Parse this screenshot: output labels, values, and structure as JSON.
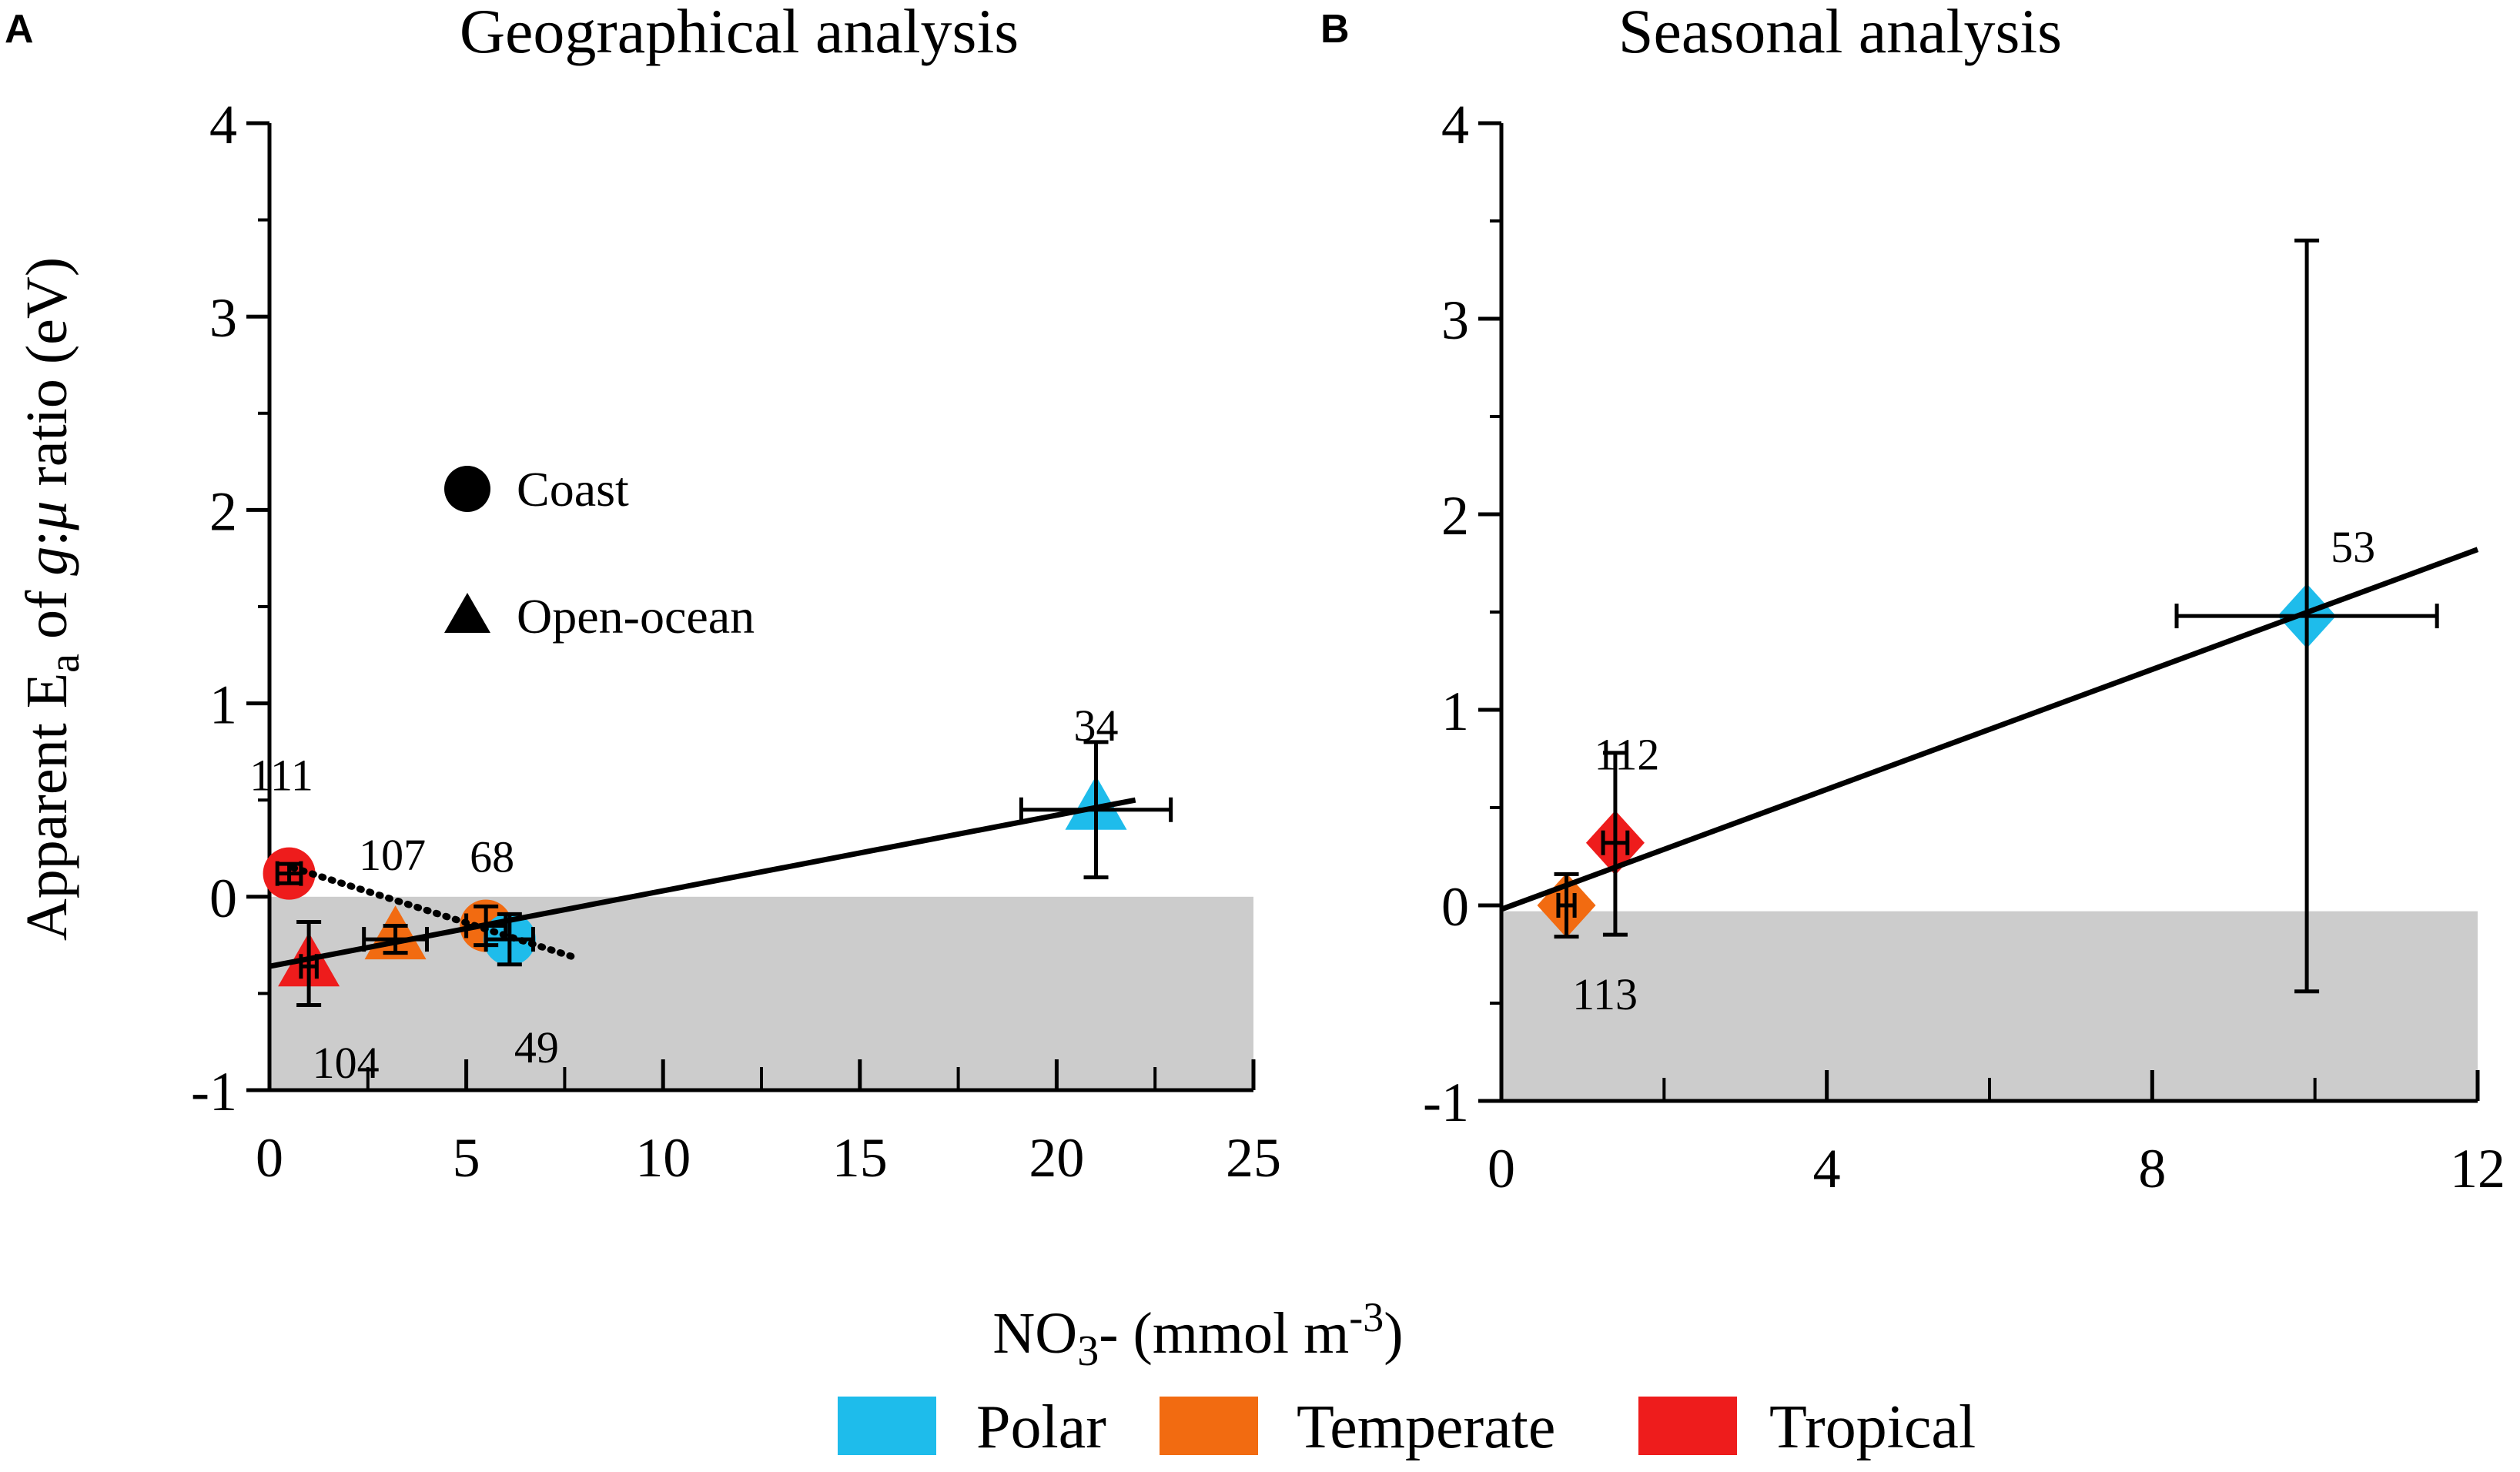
{
  "ylabel_parts": {
    "prefix": "Apparent E",
    "sub": "a",
    "of": " of ",
    "g": "g",
    "colon": ":",
    "mu": "μ",
    "suffix": " ratio (eV)"
  },
  "xlabel_parts": {
    "prefix": "NO",
    "sub": "3",
    "middle": "- (mmol m",
    "sup": "-3",
    "suffix": ")"
  },
  "colors": {
    "polar": "#1EBCEB",
    "temperate": "#F26B11",
    "tropical": "#EE1C1C",
    "shade": "#CCCCCC",
    "line": "#000000"
  },
  "region_legend": [
    {
      "label": "Polar",
      "color": "#1EBCEB"
    },
    {
      "label": "Temperate",
      "color": "#F26B11"
    },
    {
      "label": "Tropical",
      "color": "#EE1C1C"
    }
  ],
  "chart_data": [
    {
      "panel": "A",
      "type": "scatter",
      "title": "Geographical analysis",
      "xlabel": "NO3- (mmol m-3)",
      "ylabel": "Apparent Ea of g:μ ratio (eV)",
      "xlim": [
        0,
        25
      ],
      "ylim": [
        -1,
        4
      ],
      "xticks": [
        0,
        5,
        10,
        15,
        20,
        25
      ],
      "yticks": [
        -1,
        0,
        1,
        2,
        3,
        4
      ],
      "shaded_region": {
        "y_from": -1,
        "y_to": 0
      },
      "shape_legend": [
        {
          "shape": "circle",
          "label": "Coast"
        },
        {
          "shape": "triangle",
          "label": "Open-ocean"
        }
      ],
      "points": [
        {
          "label": "111",
          "x": 0.5,
          "y": 0.12,
          "shape": "circle",
          "region": "tropical",
          "xerr": [
            0.3,
            0.3
          ],
          "yerr": [
            0.05,
            0.05
          ]
        },
        {
          "label": "104",
          "x": 1.0,
          "y": -0.36,
          "shape": "triangle",
          "region": "tropical",
          "xerr": [
            0.2,
            0.2
          ],
          "yerr": [
            0.2,
            0.23
          ]
        },
        {
          "label": "107",
          "x": 3.2,
          "y": -0.22,
          "shape": "triangle",
          "region": "temperate",
          "xerr": [
            0.8,
            0.8
          ],
          "yerr": [
            0.07,
            0.07
          ]
        },
        {
          "label": "68",
          "x": 5.5,
          "y": -0.15,
          "shape": "circle",
          "region": "temperate",
          "xerr": [
            0.5,
            0.5
          ],
          "yerr": [
            0.1,
            0.1
          ]
        },
        {
          "label": "49",
          "x": 6.1,
          "y": -0.22,
          "shape": "circle",
          "region": "polar",
          "xerr": [
            0.6,
            0.6
          ],
          "yerr": [
            0.13,
            0.13
          ]
        },
        {
          "label": "34",
          "x": 21.0,
          "y": 0.45,
          "shape": "triangle",
          "region": "polar",
          "xerr": [
            1.9,
            1.9
          ],
          "yerr": [
            0.35,
            0.35
          ]
        }
      ],
      "fit_lines": [
        {
          "style": "solid",
          "x": [
            0,
            22.0
          ],
          "y": [
            -0.36,
            0.5
          ]
        },
        {
          "style": "dotted",
          "x": [
            0.6,
            7.7
          ],
          "y": [
            0.15,
            -0.31
          ]
        }
      ]
    },
    {
      "panel": "B",
      "type": "scatter",
      "title": "Seasonal analysis",
      "xlabel": "NO3- (mmol m-3)",
      "ylabel": "Apparent Ea of g:μ ratio (eV)",
      "xlim": [
        0,
        12
      ],
      "ylim": [
        -1,
        4
      ],
      "xticks": [
        0,
        4,
        8,
        12
      ],
      "yticks": [
        -1,
        0,
        1,
        2,
        3,
        4
      ],
      "shaded_region": {
        "y_from": -1,
        "y_to": -0.03
      },
      "points": [
        {
          "label": "113",
          "x": 0.8,
          "y": 0.0,
          "shape": "diamond",
          "region": "temperate",
          "xerr": [
            0.1,
            0.1
          ],
          "yerr": [
            0.16,
            0.16
          ]
        },
        {
          "label": "112",
          "x": 1.4,
          "y": 0.32,
          "shape": "diamond",
          "region": "tropical",
          "xerr": [
            0.15,
            0.15
          ],
          "yerr": [
            0.47,
            0.46
          ]
        },
        {
          "label": "53",
          "x": 9.9,
          "y": 1.48,
          "shape": "diamond",
          "region": "polar",
          "xerr": [
            1.6,
            1.6
          ],
          "yerr": [
            1.92,
            1.92
          ]
        }
      ],
      "fit_lines": [
        {
          "style": "solid",
          "x": [
            0,
            12.0
          ],
          "y": [
            -0.02,
            1.82
          ]
        }
      ]
    }
  ]
}
